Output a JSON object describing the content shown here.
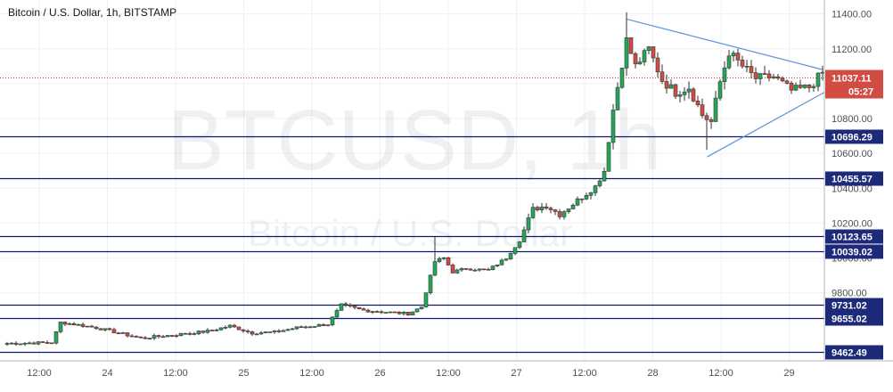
{
  "header": {
    "title": "Bitcoin / U.S. Dollar, 1h, BITSTAMP"
  },
  "watermark": {
    "symbol": "BTCUSD, 1h",
    "name": "Bitcoin / U.S. Dollar"
  },
  "chart_data": {
    "type": "candlestick",
    "symbol": "BTCUSD",
    "exchange": "BITSTAMP",
    "interval": "1h",
    "ylim": [
      9410,
      11480
    ],
    "y_ticks": [
      9800,
      10000,
      10200,
      10400,
      10600,
      10800,
      11000,
      11200,
      11400
    ],
    "x_ticks": [
      "12:00",
      "24",
      "12:00",
      "25",
      "12:00",
      "26",
      "12:00",
      "27",
      "12:00",
      "28",
      "12:00",
      "29"
    ],
    "current_price": {
      "value": 11037.11,
      "label": "11037.11",
      "countdown": "05:27"
    },
    "horizontal_levels": [
      {
        "value": 10696.29,
        "label": "10696.29"
      },
      {
        "value": 10455.57,
        "label": "10455.57"
      },
      {
        "value": 10123.65,
        "label": "10123.65"
      },
      {
        "value": 10039.02,
        "label": "10039.02"
      },
      {
        "value": 9731.02,
        "label": "9731.02"
      },
      {
        "value": 9655.02,
        "label": "9655.02"
      },
      {
        "value": 9462.49,
        "label": "9462.49"
      }
    ],
    "trendlines": [
      {
        "name": "upper",
        "from": {
          "bar": 139,
          "price": 11370
        },
        "to": {
          "bar": 183,
          "price": 11080
        }
      },
      {
        "name": "lower",
        "from": {
          "bar": 157,
          "price": 10580
        },
        "to": {
          "bar": 184,
          "price": 10960
        }
      }
    ],
    "anchors": [
      [
        0,
        9510
      ],
      [
        10,
        9515
      ],
      [
        12,
        9630
      ],
      [
        15,
        9620
      ],
      [
        20,
        9600
      ],
      [
        25,
        9570
      ],
      [
        30,
        9540
      ],
      [
        38,
        9560
      ],
      [
        45,
        9580
      ],
      [
        50,
        9610
      ],
      [
        55,
        9570
      ],
      [
        60,
        9575
      ],
      [
        65,
        9600
      ],
      [
        72,
        9620
      ],
      [
        75,
        9730
      ],
      [
        80,
        9700
      ],
      [
        85,
        9690
      ],
      [
        90,
        9680
      ],
      [
        93,
        9720
      ],
      [
        96,
        9980
      ],
      [
        98,
        10000
      ],
      [
        100,
        9920
      ],
      [
        103,
        9940
      ],
      [
        108,
        9930
      ],
      [
        112,
        10000
      ],
      [
        115,
        10100
      ],
      [
        118,
        10280
      ],
      [
        121,
        10300
      ],
      [
        124,
        10250
      ],
      [
        128,
        10330
      ],
      [
        132,
        10410
      ],
      [
        134,
        10500
      ],
      [
        136,
        10850
      ],
      [
        139,
        11250
      ],
      [
        141,
        11100
      ],
      [
        144,
        11200
      ],
      [
        147,
        11020
      ],
      [
        150,
        10950
      ],
      [
        153,
        10980
      ],
      [
        156,
        10820
      ],
      [
        158,
        10780
      ],
      [
        160,
        11010
      ],
      [
        162,
        11180
      ],
      [
        165,
        11100
      ],
      [
        168,
        11030
      ],
      [
        172,
        11040
      ],
      [
        176,
        10960
      ],
      [
        180,
        10980
      ],
      [
        184,
        11090
      ],
      [
        185,
        11037
      ]
    ]
  }
}
